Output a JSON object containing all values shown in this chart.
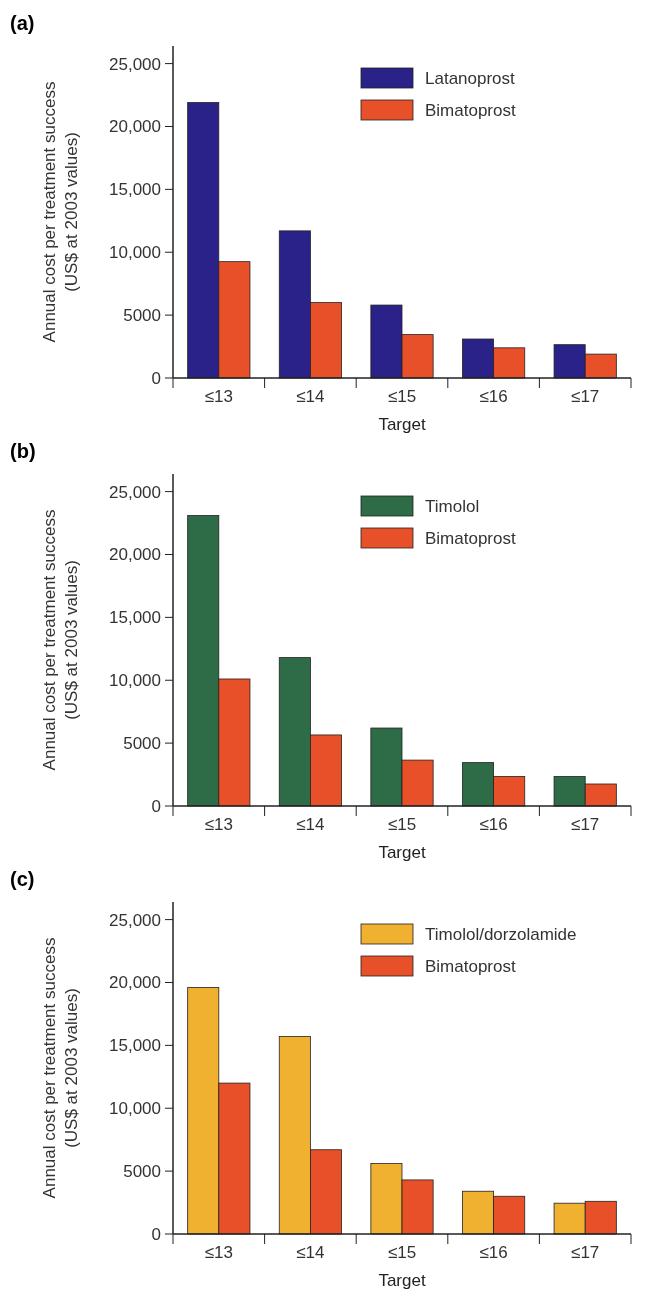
{
  "chart_data": [
    {
      "type": "bar",
      "title": "(a)",
      "xlabel": "Target",
      "ylabel": "Annual cost per treatment success\n(US$ at 2003 values)",
      "categories": [
        "≤13",
        "≤14",
        "≤15",
        "≤16",
        "≤17"
      ],
      "ylim": [
        0,
        26400
      ],
      "yticks": [
        {
          "value": 0,
          "label": "0"
        },
        {
          "value": 5000,
          "label": "5000"
        },
        {
          "value": 10000,
          "label": "10,000"
        },
        {
          "value": 15000,
          "label": "15,000"
        },
        {
          "value": 20000,
          "label": "20,000"
        },
        {
          "value": 25000,
          "label": "25,000"
        }
      ],
      "legend": "top right",
      "grid": false,
      "series": [
        {
          "name": "Latanoprost",
          "color": "#2a2288",
          "values": [
            21900,
            11700,
            5800,
            3100,
            2650
          ]
        },
        {
          "name": "Bimatoprost",
          "color": "#e8502a",
          "values": [
            9250,
            6000,
            3450,
            2400,
            1900
          ]
        }
      ]
    },
    {
      "type": "bar",
      "title": "(b)",
      "xlabel": "Target",
      "ylabel": "Annual cost per treatment success\n(US$ at 2003 values)",
      "categories": [
        "≤13",
        "≤14",
        "≤15",
        "≤16",
        "≤17"
      ],
      "ylim": [
        0,
        26400
      ],
      "yticks": [
        {
          "value": 0,
          "label": "0"
        },
        {
          "value": 5000,
          "label": "5000"
        },
        {
          "value": 10000,
          "label": "10,000"
        },
        {
          "value": 15000,
          "label": "15,000"
        },
        {
          "value": 20000,
          "label": "20,000"
        },
        {
          "value": 25000,
          "label": "25,000"
        }
      ],
      "legend": "top right",
      "grid": false,
      "series": [
        {
          "name": "Timolol",
          "color": "#2e6b47",
          "values": [
            23100,
            11800,
            6200,
            3450,
            2350
          ]
        },
        {
          "name": "Bimatoprost",
          "color": "#e8502a",
          "values": [
            10100,
            5650,
            3650,
            2350,
            1750
          ]
        }
      ]
    },
    {
      "type": "bar",
      "title": "(c)",
      "xlabel": "Target",
      "ylabel": "Annual cost per treatment success\n(US$ at 2003 values)",
      "categories": [
        "≤13",
        "≤14",
        "≤15",
        "≤16",
        "≤17"
      ],
      "ylim": [
        0,
        26400
      ],
      "yticks": [
        {
          "value": 0,
          "label": "0"
        },
        {
          "value": 5000,
          "label": "5000"
        },
        {
          "value": 10000,
          "label": "10,000"
        },
        {
          "value": 15000,
          "label": "15,000"
        },
        {
          "value": 20000,
          "label": "20,000"
        },
        {
          "value": 25000,
          "label": "25,000"
        }
      ],
      "legend": "top right",
      "grid": false,
      "series": [
        {
          "name": "Timolol/dorzolamide",
          "color": "#f0b030",
          "values": [
            19600,
            15700,
            5600,
            3400,
            2450
          ]
        },
        {
          "name": "Bimatoprost",
          "color": "#e8502a",
          "values": [
            12000,
            6700,
            4300,
            3000,
            2600
          ]
        }
      ]
    }
  ]
}
